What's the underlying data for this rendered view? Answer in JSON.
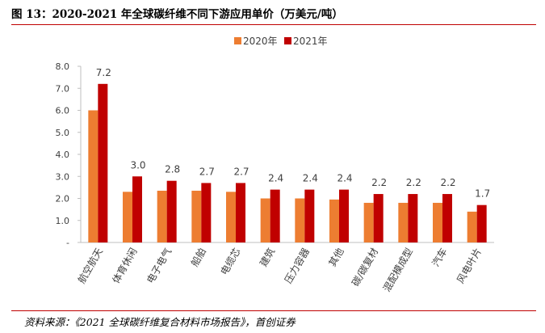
{
  "figure": {
    "title": "图 13：2020-2021 年全球碳纤维不同下游应用单价（万美元/吨）",
    "source": "资料来源：《2021 全球碳纤维复合材料市场报告》，首创证券"
  },
  "chart_data": {
    "type": "bar",
    "categories": [
      "航空航天",
      "体育休闲",
      "电子电气",
      "船舶",
      "电缆芯",
      "建筑",
      "压力容器",
      "其他",
      "碳/碳复材",
      "混配模成型",
      "汽车",
      "风电叶片"
    ],
    "series": [
      {
        "name": "2020年",
        "color": "#ed7d31",
        "values": [
          6.0,
          2.3,
          2.35,
          2.35,
          2.3,
          2.0,
          2.0,
          1.95,
          1.8,
          1.8,
          1.8,
          1.4
        ]
      },
      {
        "name": "2021年",
        "color": "#c00000",
        "values": [
          7.2,
          3.0,
          2.8,
          2.7,
          2.7,
          2.4,
          2.4,
          2.4,
          2.2,
          2.2,
          2.2,
          1.7
        ]
      }
    ],
    "data_labels": [
      "7.2",
      "3.0",
      "2.8",
      "2.7",
      "2.7",
      "2.4",
      "2.4",
      "2.4",
      "2.2",
      "2.2",
      "2.2",
      "1.7"
    ],
    "ylim": [
      0,
      8
    ],
    "yticks": [
      "-",
      "1.0",
      "2.0",
      "3.0",
      "4.0",
      "5.0",
      "6.0",
      "7.0",
      "8.0"
    ],
    "title": "",
    "xlabel": "",
    "ylabel": "",
    "legend_position": "top-center",
    "grid": false
  }
}
